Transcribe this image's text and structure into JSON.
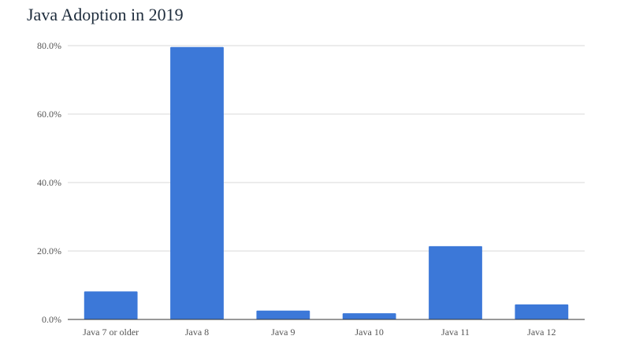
{
  "chart_data": {
    "type": "bar",
    "title": "Java Adoption in 2019",
    "categories": [
      "Java 7 or older",
      "Java 8",
      "Java 9",
      "Java 10",
      "Java 11",
      "Java 12"
    ],
    "values": [
      8.2,
      79.6,
      2.6,
      1.8,
      21.4,
      4.4
    ],
    "y_ticks": [
      "0.0%",
      "20.0%",
      "40.0%",
      "60.0%",
      "80.0%"
    ],
    "y_tick_values": [
      0,
      20,
      40,
      60,
      80
    ],
    "ylim": [
      0,
      80
    ],
    "xlabel": "",
    "ylabel": "",
    "grid": true,
    "legend": "none",
    "bar_color": "#3c78d8"
  }
}
